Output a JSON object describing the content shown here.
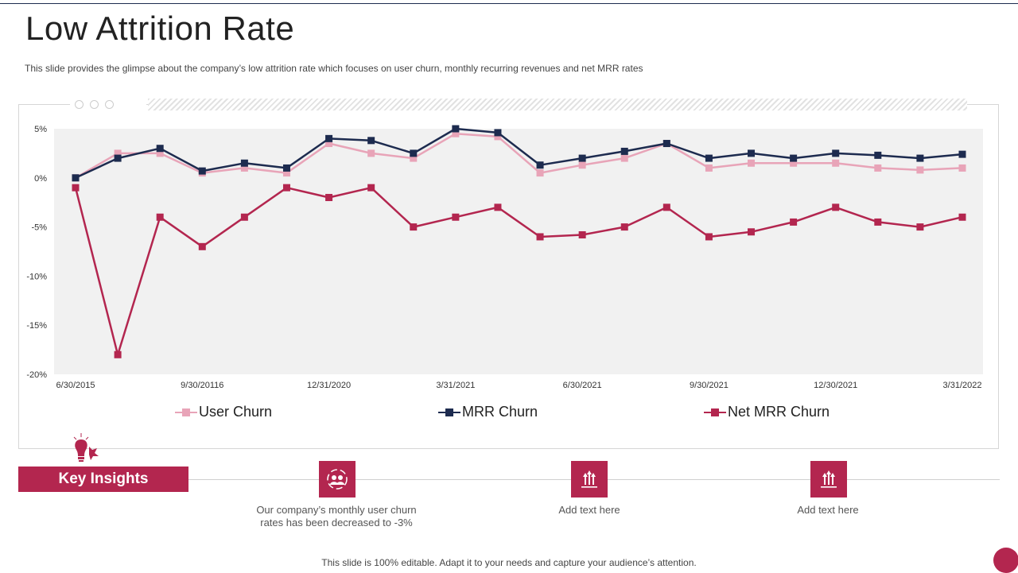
{
  "title": "Low Attrition Rate",
  "subtitle": "This slide provides the glimpse about the company’s low attrition rate which focuses on user churn, monthly recurring revenues and net MRR rates",
  "chart_data": {
    "type": "line",
    "ylim": [
      -20,
      5
    ],
    "yticks": [
      5,
      0,
      -5,
      -10,
      -15,
      -20
    ],
    "ytick_labels": [
      "5%",
      "0%",
      "-5%",
      "-10%",
      "-15%",
      "-20%"
    ],
    "x_tick_labels": [
      {
        "index": 0,
        "label": "6/30/2015"
      },
      {
        "index": 3,
        "label": "9/30/20116"
      },
      {
        "index": 6,
        "label": "12/31/2020"
      },
      {
        "index": 9,
        "label": "3/31/2021"
      },
      {
        "index": 12,
        "label": "6/30/2021"
      },
      {
        "index": 15,
        "label": "9/30/2021"
      },
      {
        "index": 18,
        "label": "12/30/2021"
      },
      {
        "index": 21,
        "label": "3/31/2022"
      }
    ],
    "grid": false,
    "legend_position": "bottom",
    "series": [
      {
        "name": "User Churn",
        "color": "#e8a4b8",
        "values": [
          0,
          2.5,
          2.5,
          0.5,
          1,
          0.5,
          3.5,
          2.5,
          2,
          4.5,
          4.2,
          0.5,
          1.3,
          2,
          3.5,
          1,
          1.5,
          1.5,
          1.5,
          1,
          0.8,
          1
        ]
      },
      {
        "name": "MRR Churn",
        "color": "#1d2b4f",
        "values": [
          0,
          2,
          3,
          0.7,
          1.5,
          1,
          4,
          3.8,
          2.5,
          5,
          4.6,
          1.3,
          2,
          2.7,
          3.5,
          2,
          2.5,
          2,
          2.5,
          2.3,
          2,
          2.4
        ]
      },
      {
        "name": "Net MRR Churn",
        "color": "#b3264f",
        "values": [
          -1,
          -18,
          -4,
          -7,
          -4,
          -1,
          -2,
          -1,
          -5,
          -4,
          -3,
          -6,
          -5.8,
          -5,
          -3,
          -6,
          -5.5,
          -4.5,
          -3,
          -4.5,
          -5,
          -4
        ]
      }
    ]
  },
  "insights": {
    "heading": "Key Insights",
    "items": [
      {
        "text": "Our company’s monthly user churn rates has been decreased to -3%",
        "icon": "team-icon"
      },
      {
        "text": "Add text here",
        "icon": "growth-arrows-icon"
      },
      {
        "text": "Add text here",
        "icon": "growth-arrows-icon"
      }
    ]
  },
  "footer": "This slide is 100% editable. Adapt it to your needs and capture your audience’s attention.",
  "colors": {
    "accent": "#b3264f",
    "navy": "#1d2b4f",
    "pink": "#e8a4b8",
    "plot_bg": "#f1f1f1"
  }
}
